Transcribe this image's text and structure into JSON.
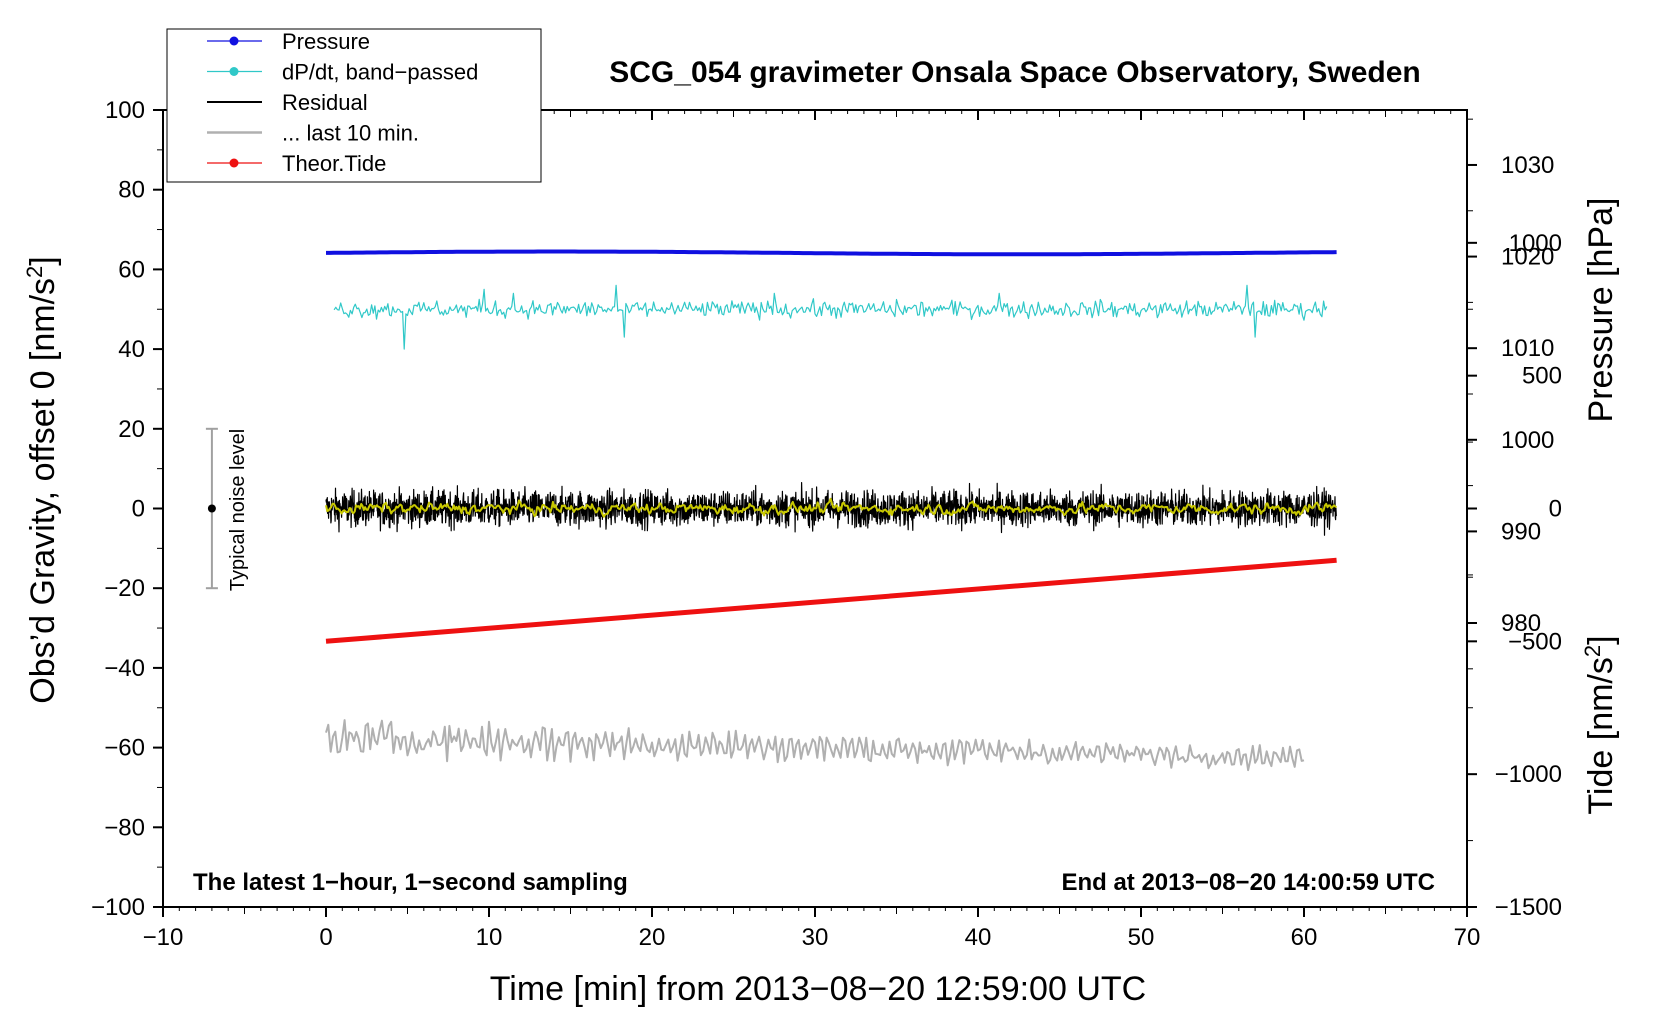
{
  "chart_data": {
    "type": "line",
    "title": "SCG_054 gravimeter Onsala Space Observatory, Sweden",
    "xlabel": "Time [min] from 2013−08−20 12:59:00 UTC",
    "ylabel": "Obs’d Gravity, offset 0 [nm/s",
    "ylabel_sup": "2",
    "ylabel_close": "]",
    "xlim": [
      -10,
      70
    ],
    "ylim": [
      -100,
      100
    ],
    "x_ticks": [
      -10,
      0,
      10,
      20,
      30,
      40,
      50,
      60,
      70
    ],
    "x_tick_labels": [
      "−10",
      "0",
      "10",
      "20",
      "30",
      "40",
      "50",
      "60",
      "70"
    ],
    "y_ticks": [
      100,
      80,
      60,
      40,
      20,
      0,
      -20,
      -40,
      -60,
      -80,
      -100
    ],
    "y_tick_labels": [
      "100",
      "80",
      "60",
      "40",
      "20",
      "0",
      "−20",
      "−40",
      "−60",
      "−80",
      "−100"
    ],
    "pressure_axis": {
      "label": "Pressure [hPa]",
      "ticks": [
        1030,
        1020,
        1010,
        1000,
        990,
        980
      ],
      "tick_labels": [
        "1030",
        "1020",
        "1010",
        "1000",
        "990",
        "980"
      ],
      "range": [
        949,
        1036
      ]
    },
    "tide_axis": {
      "label": "Tide [nm/s",
      "label_sup": "2",
      "label_close": "]",
      "ticks": [
        1000,
        500,
        0,
        -500,
        -1000,
        -1500
      ],
      "tick_labels": [
        "1000",
        "500",
        "0",
        "−500",
        "−1000",
        "−1500"
      ],
      "range": [
        -1500,
        1500
      ]
    },
    "legend": {
      "position": "top-left",
      "entries": [
        {
          "label": "Pressure",
          "color": "#1010e0",
          "marker": true
        },
        {
          "label": "dP/dt, band−passed",
          "color": "#30c8c8",
          "marker": true
        },
        {
          "label": "Residual",
          "color": "#000000",
          "marker": false
        },
        {
          "label": "... last 10 min.",
          "color": "#b0b0b0",
          "marker": false
        },
        {
          "label": "Theor.Tide",
          "color": "#ee1111",
          "marker": true
        }
      ]
    },
    "series": [
      {
        "name": "Pressure",
        "axis": "pressure",
        "color": "#1010e0",
        "x_range": [
          0,
          62
        ],
        "level_hpa": 1020.4,
        "noise_hpa": 0.15
      },
      {
        "name": "dP/dt, band−passed",
        "axis": "gravity",
        "color": "#30c8c8",
        "x_range": [
          0.5,
          61.5
        ],
        "center": 50,
        "noise": 3,
        "spikes": [
          [
            4.8,
            -10
          ],
          [
            9.7,
            5
          ],
          [
            11.5,
            4
          ],
          [
            17.8,
            6
          ],
          [
            18.3,
            -7
          ],
          [
            27.5,
            4
          ],
          [
            41.3,
            4
          ],
          [
            56.5,
            6
          ],
          [
            57.0,
            -7
          ]
        ]
      },
      {
        "name": "Residual",
        "axis": "gravity",
        "color": "#000000",
        "x_range": [
          0,
          62
        ],
        "center": 0,
        "noise": 3.2
      },
      {
        "name": "Residual smoothed",
        "axis": "gravity",
        "color": "#c8c800",
        "x_range": [
          0,
          62
        ],
        "center": 0,
        "noise": 0.8
      },
      {
        "name": "... last 10 min.",
        "axis": "gravity",
        "color": "#b0b0b0",
        "x_range": [
          0,
          60
        ],
        "start": -57.5,
        "end": -62.5,
        "noise": 4
      },
      {
        "name": "Theor.Tide",
        "axis": "tide",
        "color": "#ee1111",
        "x": [
          0,
          62
        ],
        "y": [
          -500,
          -195
        ]
      }
    ],
    "noise_marker": {
      "label": "Typical noise level",
      "x": -7,
      "center": 0,
      "range": [
        -20,
        20
      ]
    },
    "annotations": {
      "bottom_left": "The latest 1−hour, 1−second sampling",
      "bottom_right": "End at 2013−08−20 14:00:59 UTC"
    },
    "grid": false
  }
}
